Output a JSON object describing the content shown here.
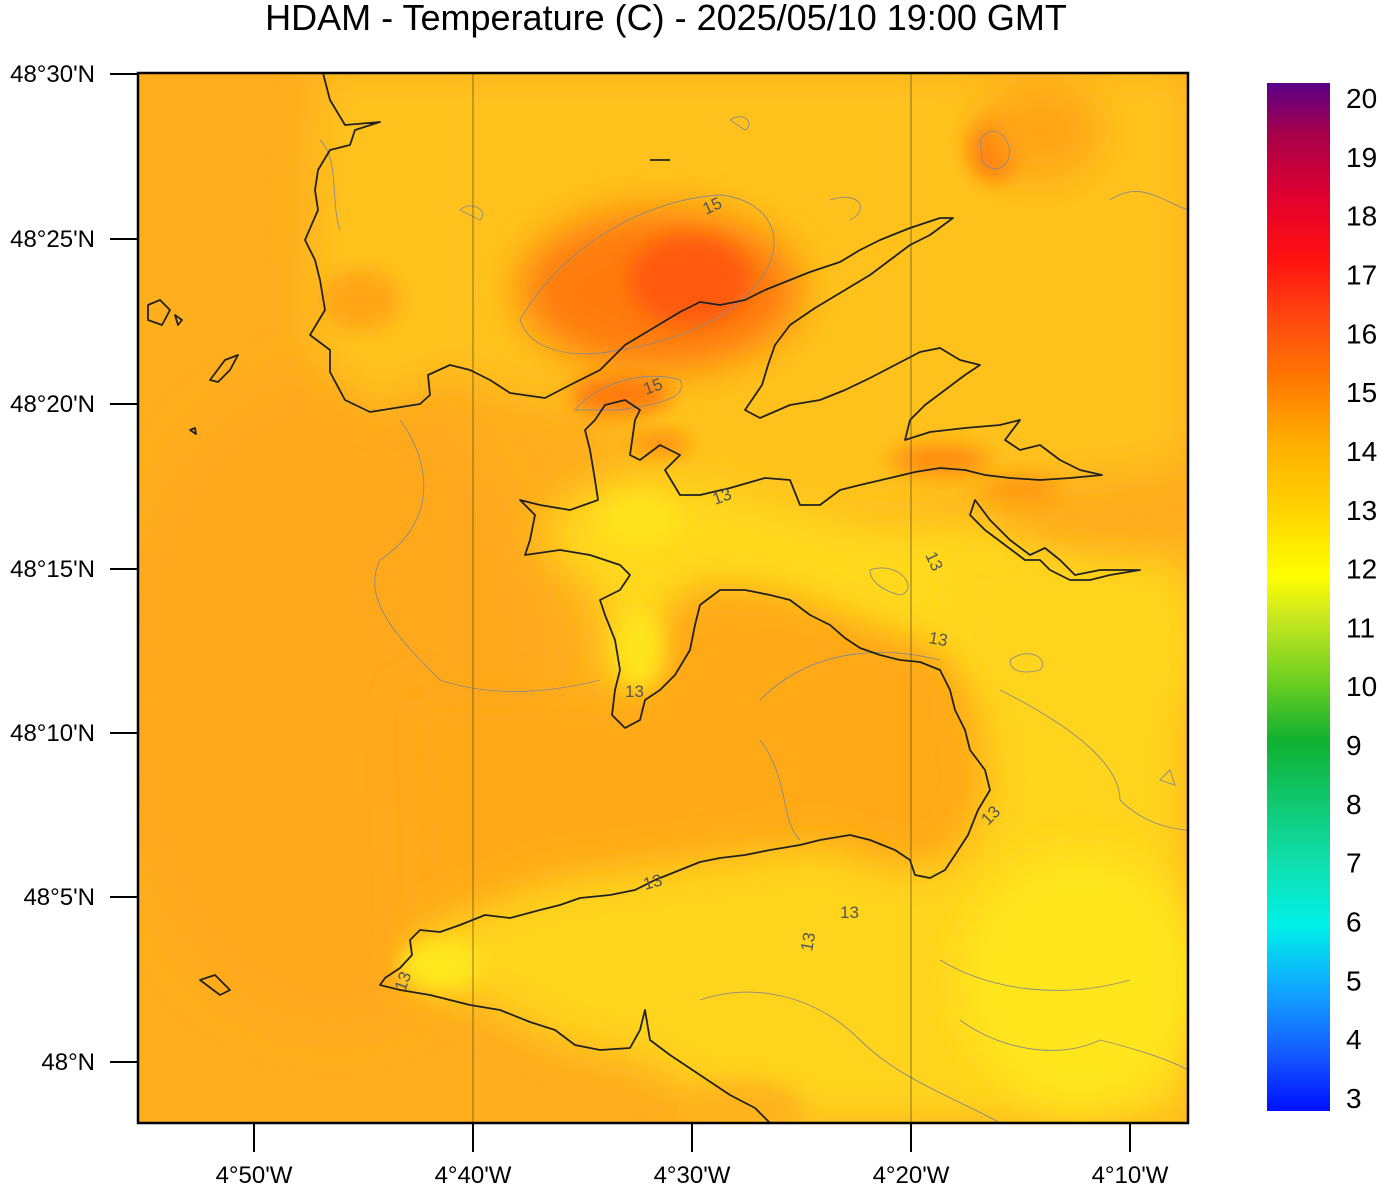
{
  "title": "HDAM - Temperature (C)  -  2025/05/10  19:00 GMT",
  "latitude_labels": [
    "48°30'N",
    "48°25'N",
    "48°20'N",
    "48°15'N",
    "48°10'N",
    "48°5'N",
    "48°N"
  ],
  "longitude_labels": [
    "4°50'W",
    "4°40'W",
    "4°30'W",
    "4°20'W",
    "4°10'W"
  ],
  "colorbar": {
    "min": 3,
    "max": 20,
    "labels": [
      "20",
      "19",
      "18",
      "17",
      "16",
      "15",
      "14",
      "13",
      "12",
      "11",
      "10",
      "9",
      "8",
      "7",
      "6",
      "5",
      "4",
      "3"
    ],
    "colors": {
      "3": "#0010ff",
      "4": "#1560ff",
      "5": "#10a8ff",
      "6": "#00f0e8",
      "7": "#10e0b0",
      "8": "#10c870",
      "9": "#10b030",
      "10": "#70d020",
      "11": "#c8e820",
      "12": "#ffff00",
      "13": "#ffd000",
      "14": "#ffae00",
      "15": "#ff7a00",
      "16": "#ff4810",
      "17": "#ff1010",
      "18": "#e00030",
      "19": "#a8004a",
      "20": "#5a0088"
    }
  },
  "contour_labels": [
    "15",
    "15",
    "13",
    "13",
    "13",
    "13",
    "13",
    "13",
    "13",
    "13",
    "13"
  ],
  "map_colors": {
    "sea_base": "#ffae1e",
    "land_warm": "#ffc81e",
    "land_cool": "#ffe020",
    "hot": "#ff6a10",
    "coast": "#222222"
  }
}
